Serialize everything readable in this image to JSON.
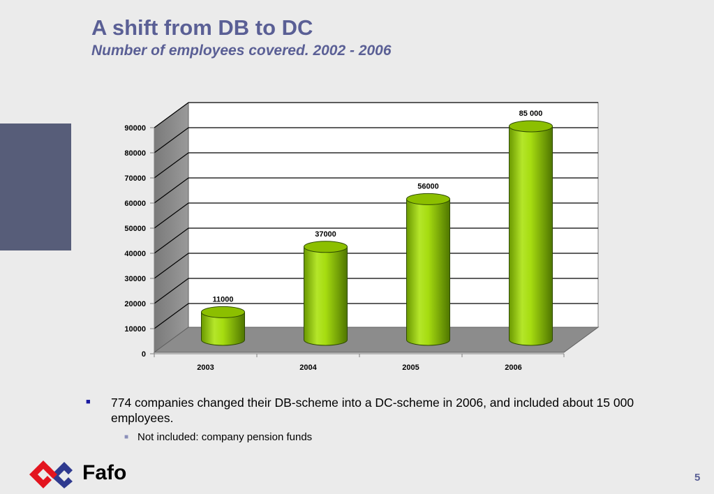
{
  "slide": {
    "title": "A shift from DB to DC",
    "subtitle": "Number of employees covered. 2002 - 2006",
    "page_number": "5",
    "logo_text": "Fafo"
  },
  "bullets": {
    "main": "774 companies changed their DB-scheme into a DC-scheme in 2006, and included about 15 000 employees.",
    "sub": "Not included: company pension funds"
  },
  "colors": {
    "title": "#5a5f95",
    "bar": "#99cc00",
    "side_block": "#575d79",
    "logo_red": "#e3141e",
    "logo_blue": "#2f3a8f"
  },
  "chart_data": {
    "type": "bar",
    "style": "3d-cylinder",
    "title": "",
    "xlabel": "",
    "ylabel": "",
    "categories": [
      "2003",
      "2004",
      "2005",
      "2006"
    ],
    "series": [
      {
        "values": [
          11000,
          37000,
          56000,
          85000
        ]
      }
    ],
    "data_labels": [
      "11000",
      "37000",
      "56000",
      "85 000"
    ],
    "ylim": [
      0,
      90000
    ],
    "yticks": [
      0,
      10000,
      20000,
      30000,
      40000,
      50000,
      60000,
      70000,
      80000,
      90000
    ],
    "ytick_labels": [
      "0",
      "10000",
      "20000",
      "30000",
      "40000",
      "50000",
      "60000",
      "70000",
      "80000",
      "90000"
    ],
    "grid": true,
    "legend": "none"
  }
}
